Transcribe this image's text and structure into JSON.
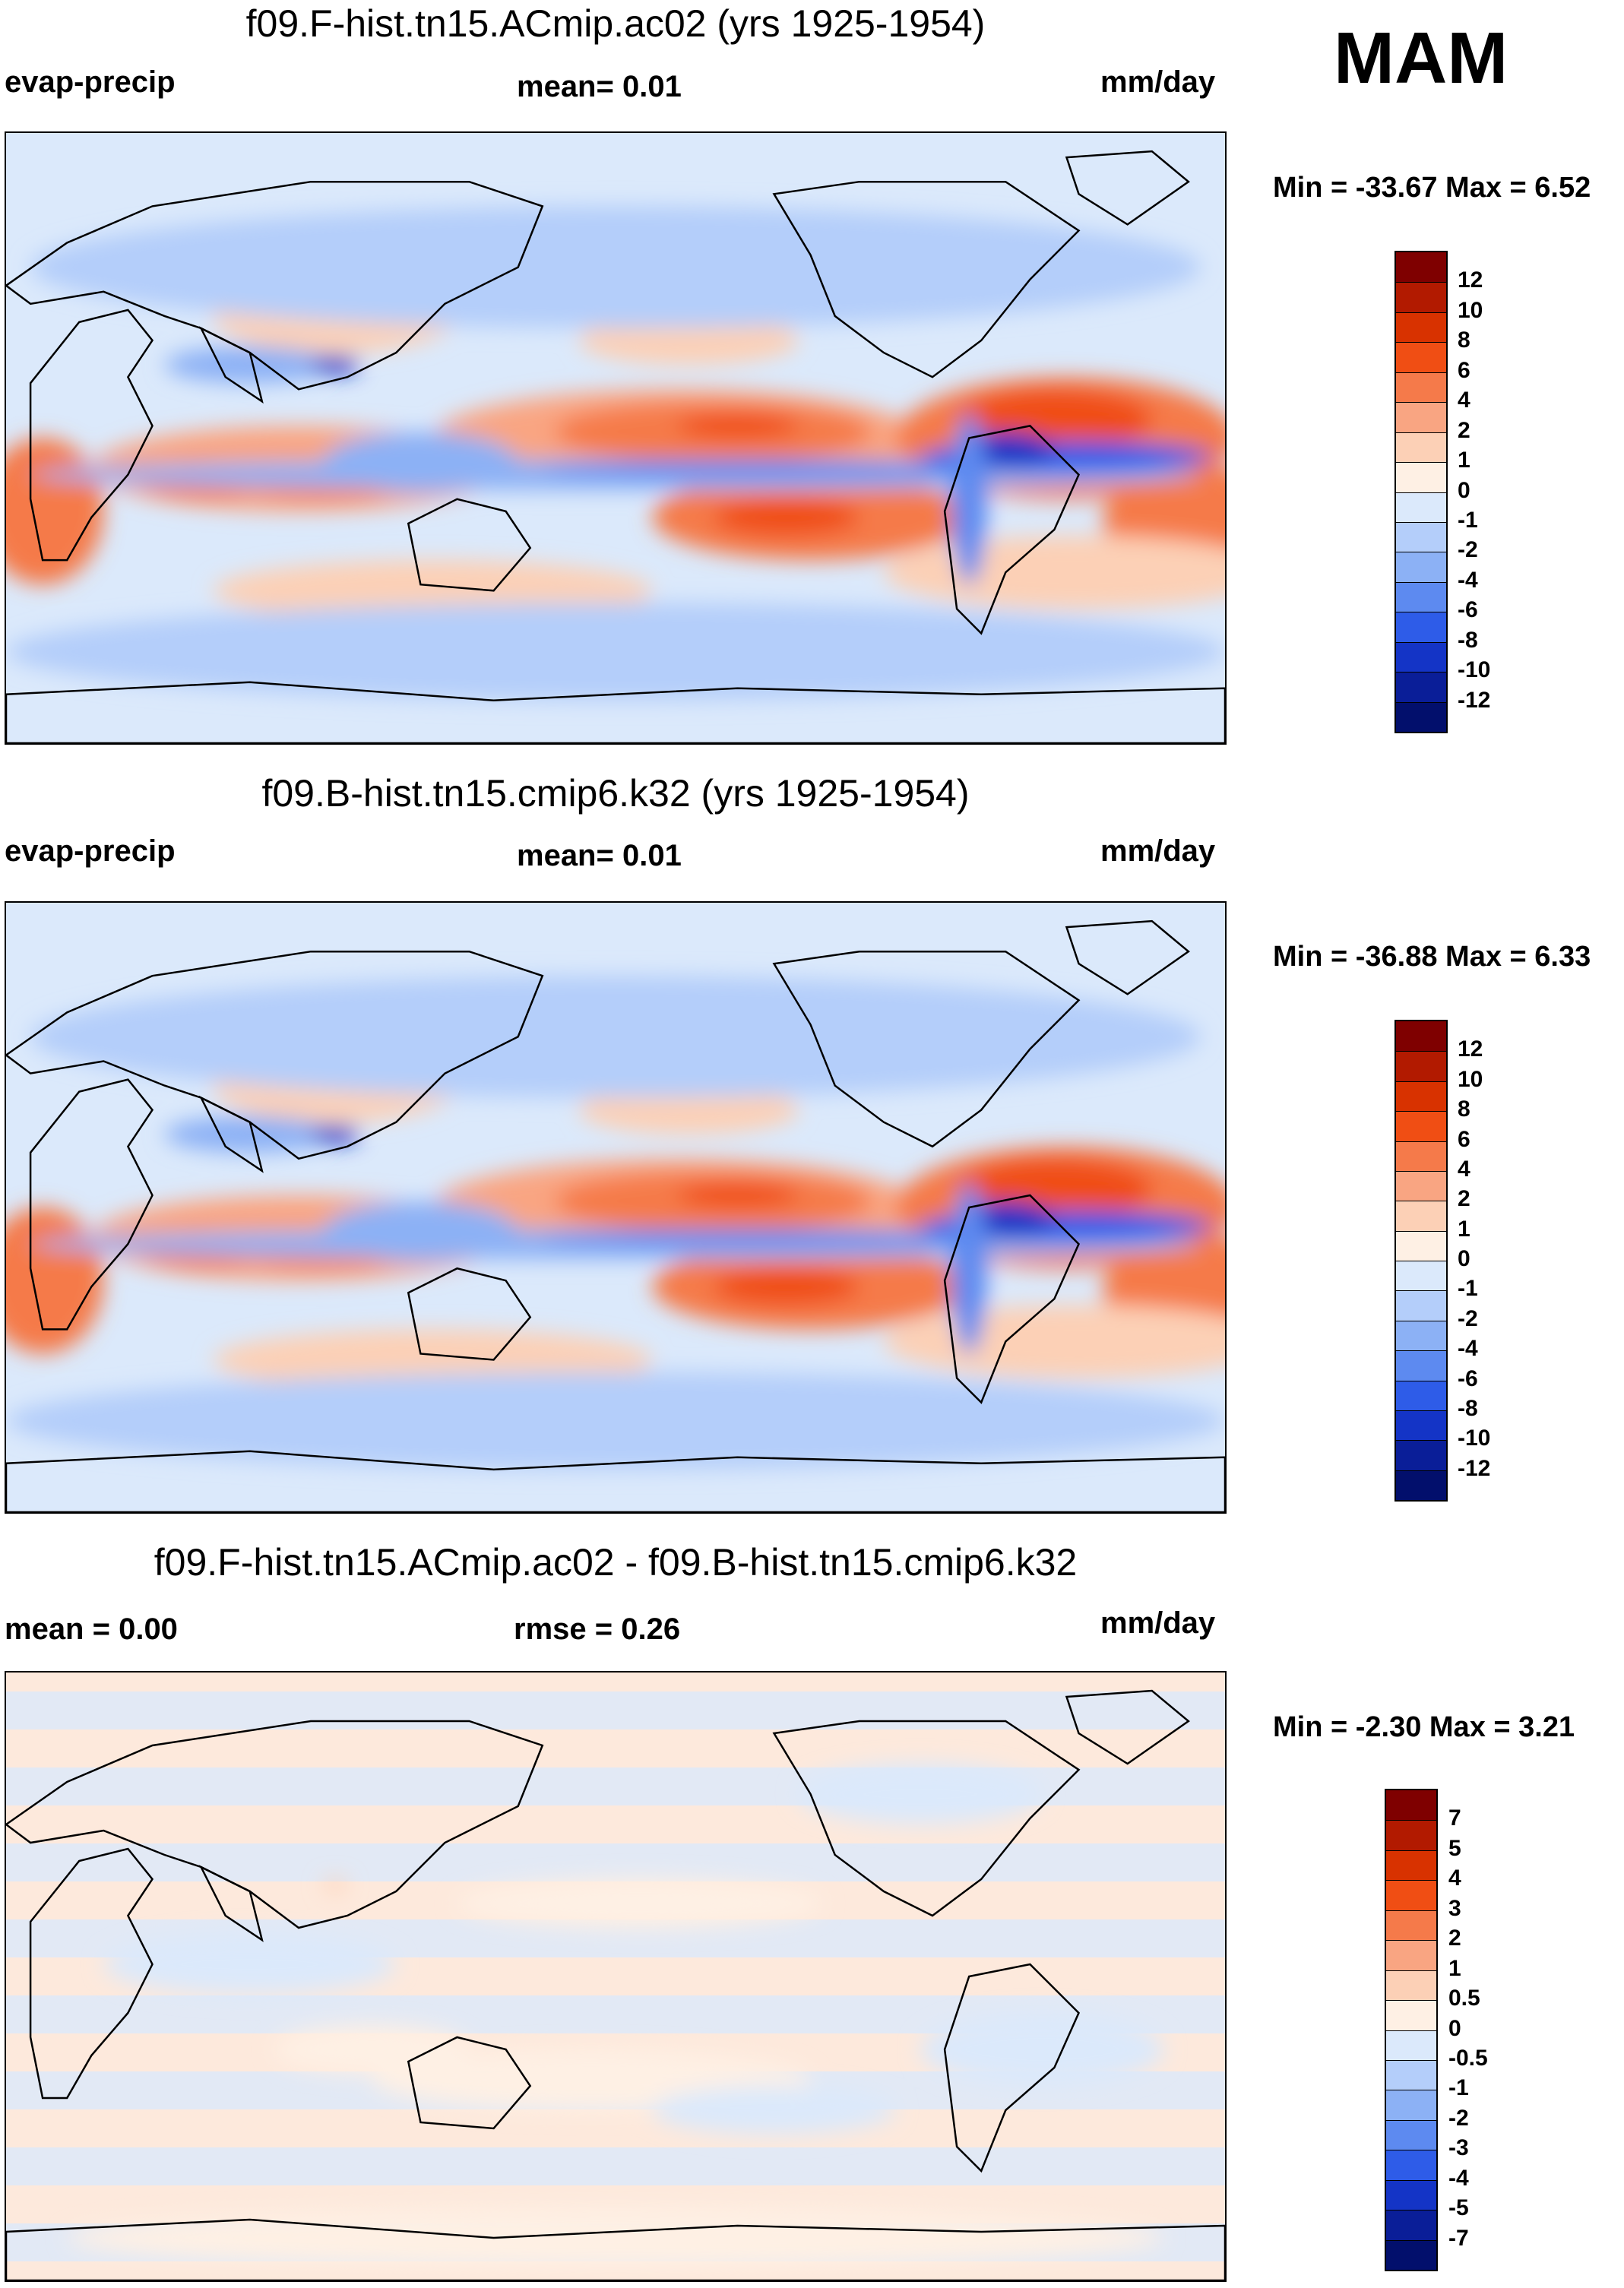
{
  "season": "MAM",
  "panels": [
    {
      "id": "panel1",
      "title": "f09.F-hist.tn15.ACmip.ac02 (yrs 1925-1954)",
      "left_label": "evap-precip",
      "center_label": "mean=   0.01",
      "units": "mm/day",
      "minmax": "Min = -33.67 Max =   6.52",
      "colorbar_ticks": [
        "12",
        "10",
        "8",
        "6",
        "4",
        "2",
        "1",
        "0",
        "-1",
        "-2",
        "-4",
        "-6",
        "-8",
        "-10",
        "-12"
      ]
    },
    {
      "id": "panel2",
      "title": "f09.B-hist.tn15.cmip6.k32 (yrs 1925-1954)",
      "left_label": "evap-precip",
      "center_label": "mean=   0.01",
      "units": "mm/day",
      "minmax": "Min = -36.88 Max =   6.33",
      "colorbar_ticks": [
        "12",
        "10",
        "8",
        "6",
        "4",
        "2",
        "1",
        "0",
        "-1",
        "-2",
        "-4",
        "-6",
        "-8",
        "-10",
        "-12"
      ]
    },
    {
      "id": "panel3",
      "title": "f09.F-hist.tn15.ACmip.ac02 - f09.B-hist.tn15.cmip6.k32",
      "left_label": "mean =    0.00",
      "center_label": "rmse =    0.26",
      "units": "mm/day",
      "minmax": "Min =  -2.30 Max =   3.21",
      "colorbar_ticks": [
        "7",
        "5",
        "4",
        "3",
        "2",
        "1",
        "0.5",
        "0",
        "-0.5",
        "-1",
        "-2",
        "-3",
        "-4",
        "-5",
        "-7"
      ]
    }
  ],
  "colors": {
    "colorbar_top_to_bottom": [
      "#7f0000",
      "#b21a00",
      "#d83200",
      "#f04e14",
      "#f57a4a",
      "#f9a582",
      "#fcd0b6",
      "#fef0e4",
      "#dbe9fb",
      "#b4cefa",
      "#8cb1f5",
      "#5d8af0",
      "#2e5ce8",
      "#1434c6",
      "#0a1e98",
      "#020f6c"
    ],
    "ocean_background": "#dbe9fb",
    "coastline": "#000000"
  },
  "chart_data": [
    {
      "type": "heatmap",
      "title": "f09.F-hist.tn15.ACmip.ac02 (yrs 1925-1954)",
      "variable": "evap-precip",
      "units": "mm/day",
      "mean": 0.01,
      "min": -33.67,
      "max": 6.52,
      "contour_levels": [
        -12,
        -10,
        -8,
        -6,
        -4,
        -2,
        -1,
        0,
        1,
        2,
        4,
        6,
        8,
        10,
        12
      ]
    },
    {
      "type": "heatmap",
      "title": "f09.B-hist.tn15.cmip6.k32 (yrs 1925-1954)",
      "variable": "evap-precip",
      "units": "mm/day",
      "mean": 0.01,
      "min": -36.88,
      "max": 6.33,
      "contour_levels": [
        -12,
        -10,
        -8,
        -6,
        -4,
        -2,
        -1,
        0,
        1,
        2,
        4,
        6,
        8,
        10,
        12
      ]
    },
    {
      "type": "heatmap",
      "title": "f09.F-hist.tn15.ACmip.ac02 - f09.B-hist.tn15.cmip6.k32",
      "units": "mm/day",
      "mean": 0.0,
      "rmse": 0.26,
      "min": -2.3,
      "max": 3.21,
      "contour_levels": [
        -7,
        -5,
        -4,
        -3,
        -2,
        -1,
        -0.5,
        0,
        0.5,
        1,
        2,
        3,
        4,
        5,
        7
      ]
    }
  ]
}
